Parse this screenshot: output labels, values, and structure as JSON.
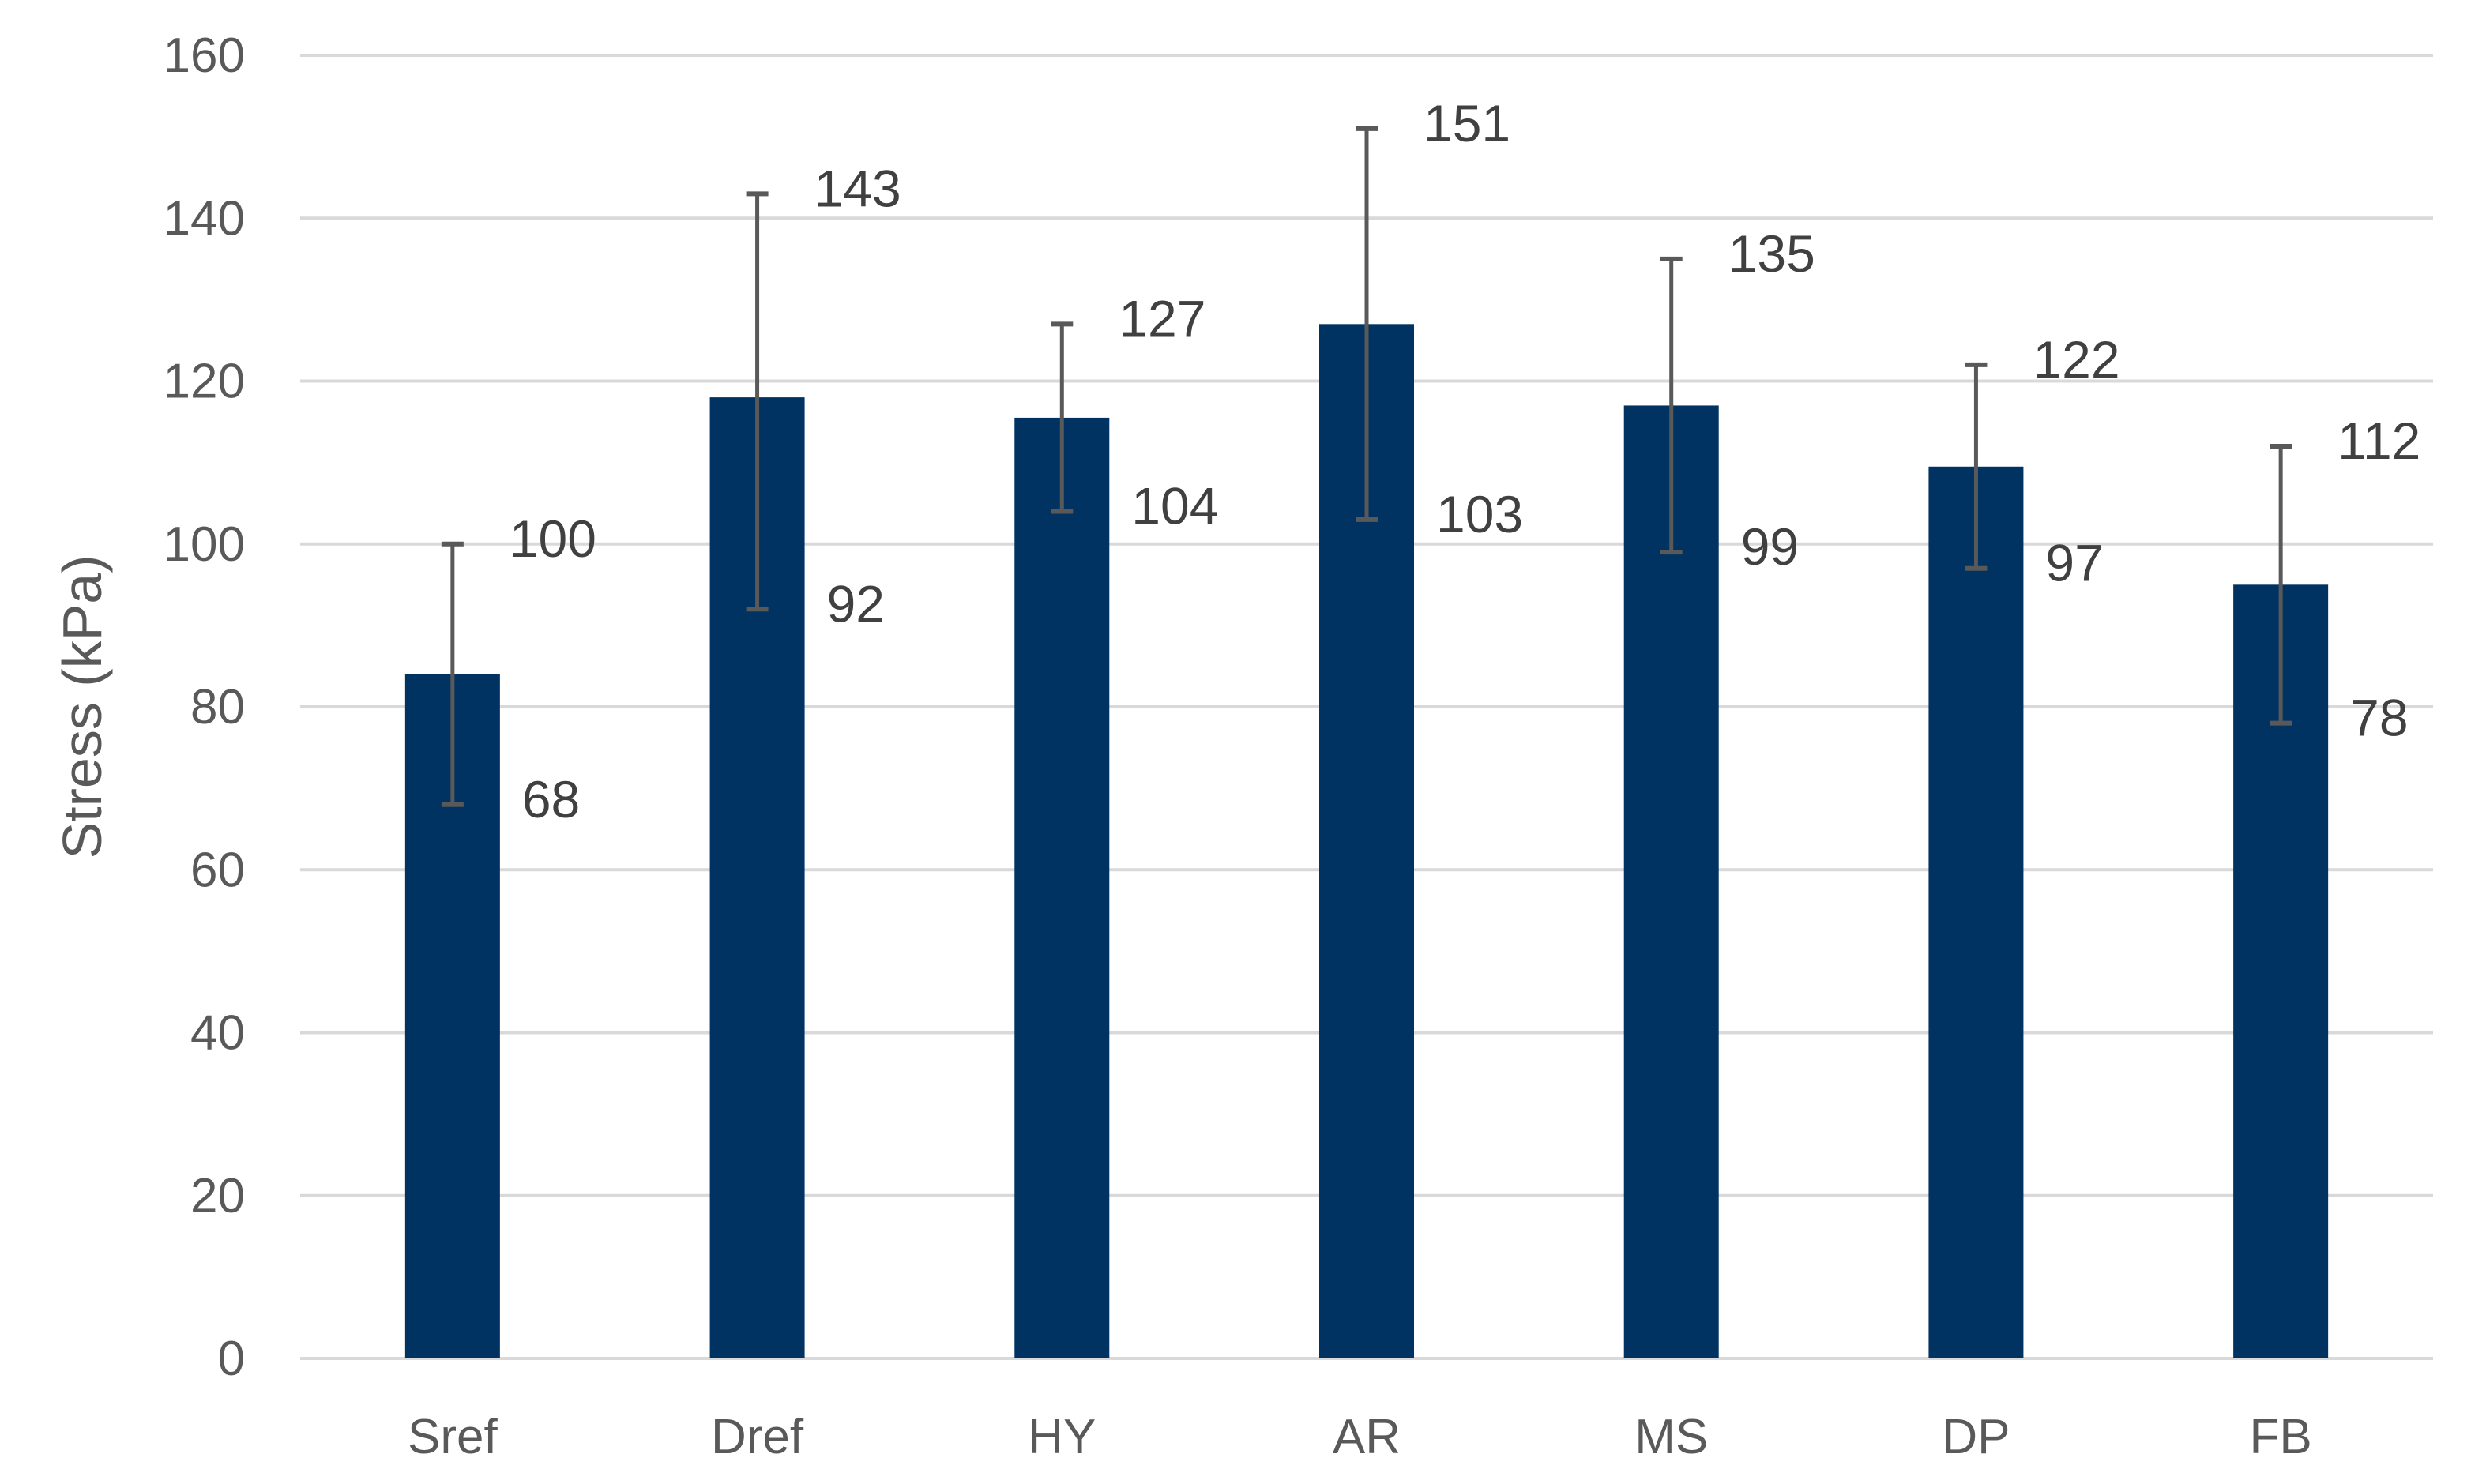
{
  "chart_data": {
    "type": "bar",
    "title": "",
    "xlabel": "",
    "ylabel": "Stress (kPa)",
    "ylim": [
      0,
      160
    ],
    "y_ticks": [
      0,
      20,
      40,
      60,
      80,
      100,
      120,
      140,
      160
    ],
    "grid": true,
    "legend": "none",
    "categories": [
      "Sref",
      "Dref",
      "HY",
      "AR",
      "MS",
      "DP",
      "FB"
    ],
    "values": [
      84,
      118,
      115.5,
      127,
      117,
      109.5,
      95
    ],
    "error_low": [
      68,
      92,
      104,
      103,
      99,
      97,
      78
    ],
    "error_high": [
      100,
      143,
      127,
      151,
      135,
      122,
      112
    ],
    "error_low_labels": [
      "68",
      "92",
      "104",
      "103",
      "99",
      "97",
      "78"
    ],
    "error_high_labels": [
      "100",
      "143",
      "127",
      "151",
      "135",
      "122",
      "112"
    ],
    "colors": {
      "bar": "#003262",
      "error_bar": "#595959",
      "grid": "#d9d9d9",
      "axis": "#d9d9d9"
    }
  }
}
